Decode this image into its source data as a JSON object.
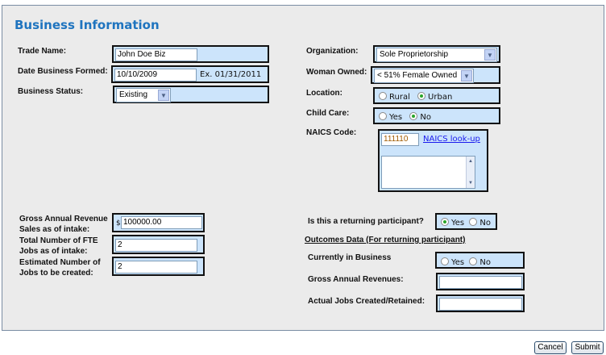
{
  "title": "Business Information",
  "left": {
    "trade_name": {
      "label": "Trade Name:",
      "value": "John Doe Biz"
    },
    "date_formed": {
      "label": "Date Business Formed:",
      "value": "10/10/2009",
      "hint": "Ex. 01/31/2011"
    },
    "status": {
      "label": "Business Status:",
      "value": "Existing"
    },
    "revenue": {
      "label1": "Gross Annual Revenue",
      "label2": "Sales as of intake:",
      "prefix": "$",
      "value": "100000.00"
    },
    "fte": {
      "label1": "Total Number of FTE",
      "label2": "Jobs as of intake:",
      "value": "2"
    },
    "est_jobs": {
      "label1": "Estimated Number of",
      "label2": "Jobs to be created:",
      "value": "2"
    }
  },
  "right": {
    "organization": {
      "label": "Organization:",
      "value": "Sole Proprietorship"
    },
    "woman_owned": {
      "label": "Woman Owned:",
      "value": "< 51% Female Owned"
    },
    "location": {
      "label": "Location:",
      "options": [
        "Rural",
        "Urban"
      ],
      "selected": "Urban"
    },
    "child_care": {
      "label": "Child Care:",
      "options": [
        "Yes",
        "No"
      ],
      "selected": "No"
    },
    "naics": {
      "label": "NAICS Code:",
      "value": "111110",
      "link": "NAICS look-up",
      "description": ""
    },
    "returning": {
      "label": "Is this a returning participant?",
      "options": [
        "Yes",
        "No"
      ],
      "selected": "Yes"
    },
    "outcomes_heading": "Outcomes Data (For returning participant)",
    "currently": {
      "label": "Currently in Business",
      "options": [
        "Yes",
        "No"
      ],
      "selected": null
    },
    "gross": {
      "label": "Gross Annual Revenues:",
      "value": ""
    },
    "actual_jobs": {
      "label": "Actual Jobs Created/Retained:",
      "value": ""
    }
  },
  "buttons": {
    "cancel": "Cancel",
    "submit": "Submit"
  }
}
